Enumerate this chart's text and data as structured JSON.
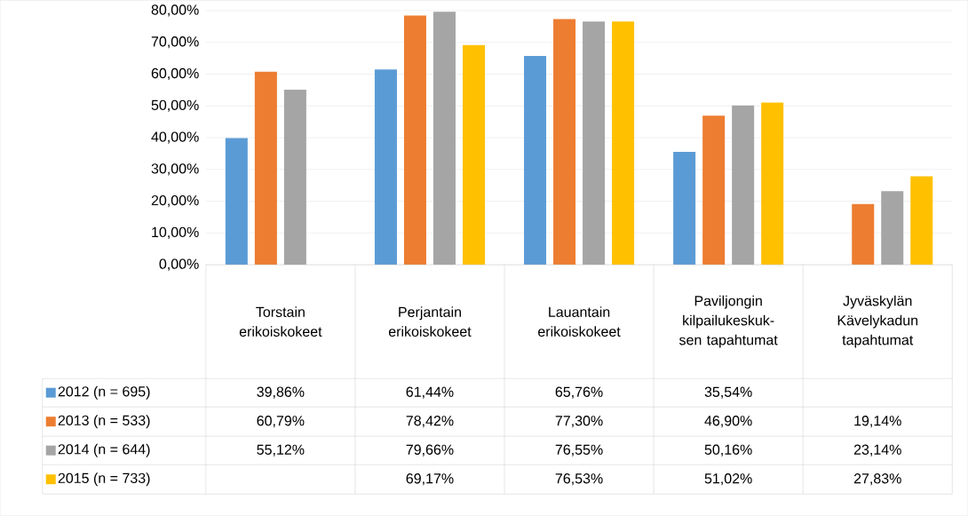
{
  "chart_data": {
    "type": "bar",
    "categories": [
      "Torstain erikoiskokeet",
      "Perjantain erikoiskokeet",
      "Lauantain erikoiskokeet",
      "Paviljongin kilpailukeskuk-sen tapahtumat",
      "Jyväskylän Kävelykadun tapahtumat"
    ],
    "series": [
      {
        "name": "2012 (n = 695)",
        "color": "#5b9bd5",
        "values": [
          39.86,
          61.44,
          65.76,
          35.54,
          null
        ],
        "value_labels": [
          "39,86%",
          "61,44%",
          "65,76%",
          "35,54%",
          null
        ]
      },
      {
        "name": "2013 (n = 533)",
        "color": "#ed7d31",
        "values": [
          60.79,
          78.42,
          77.3,
          46.9,
          19.14
        ],
        "value_labels": [
          "60,79%",
          "78,42%",
          "77,30%",
          "46,90%",
          "19,14%"
        ]
      },
      {
        "name": "2014 (n = 644)",
        "color": "#a5a5a5",
        "values": [
          55.12,
          79.66,
          76.55,
          50.16,
          23.14
        ],
        "value_labels": [
          "55,12%",
          "79,66%",
          "76,55%",
          "50,16%",
          "23,14%"
        ]
      },
      {
        "name": "2015 (n = 733)",
        "color": "#ffc000",
        "values": [
          null,
          69.17,
          76.53,
          51.02,
          27.83
        ],
        "value_labels": [
          null,
          "69,17%",
          "76,53%",
          "51,02%",
          "27,83%"
        ]
      }
    ],
    "ylim": [
      0,
      80
    ],
    "yticks": [
      {
        "value": 0,
        "label": "0,00%"
      },
      {
        "value": 10,
        "label": "10,00%"
      },
      {
        "value": 20,
        "label": "20,00%"
      },
      {
        "value": 30,
        "label": "30,00%"
      },
      {
        "value": 40,
        "label": "40,00%"
      },
      {
        "value": 50,
        "label": "50,00%"
      },
      {
        "value": 60,
        "label": "60,00%"
      },
      {
        "value": 70,
        "label": "70,00%"
      },
      {
        "value": 80,
        "label": "80,00%"
      }
    ],
    "grid": "y",
    "legend": "bottom left"
  }
}
